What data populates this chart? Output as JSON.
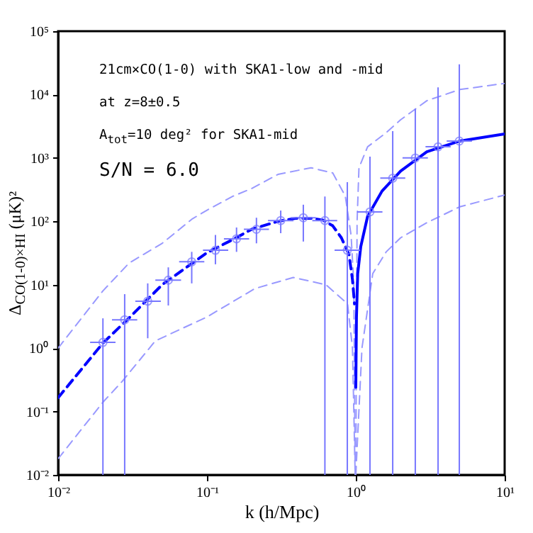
{
  "chart_data": {
    "type": "line",
    "xlabel": "k (h/Mpc)",
    "ylabel": "Δ$_{CO(1-0)×HI}$ (μK)²",
    "log": "xy",
    "xlim": [
      0.01,
      10
    ],
    "ylim": [
      0.01,
      100000
    ],
    "xticks": [
      {
        "value": 0.01,
        "label": "10⁻²"
      },
      {
        "value": 0.1,
        "label": "10⁻¹"
      },
      {
        "value": 1,
        "label": "10⁰"
      },
      {
        "value": 10,
        "label": "10¹"
      }
    ],
    "yticks": [
      {
        "value": 0.01,
        "label": "10⁻²"
      },
      {
        "value": 0.1,
        "label": "10⁻¹"
      },
      {
        "value": 1,
        "label": "10⁰"
      },
      {
        "value": 10,
        "label": "10¹"
      },
      {
        "value": 100,
        "label": "10²"
      },
      {
        "value": 1000,
        "label": "10³"
      },
      {
        "value": 10000,
        "label": "10⁴"
      },
      {
        "value": 100000,
        "label": "10⁵"
      }
    ],
    "annotations": [
      "21cm×CO(1-0) with SKA1-low and -mid",
      "at z=8±0.5",
      "A$_{tot}$=10 deg² for SKA1-mid",
      "S/N = 6.0"
    ],
    "series": [
      {
        "line_style": "dashed",
        "color": "#9999ff",
        "x": [
          0.01,
          0.02,
          0.03,
          0.05,
          0.08,
          0.1,
          0.15,
          0.2,
          0.3,
          0.5,
          0.7,
          0.85,
          0.93,
          0.97,
          0.99
        ],
        "values": [
          1.0,
          8,
          22,
          45,
          110,
          150,
          250,
          330,
          550,
          700,
          580,
          250,
          60,
          10,
          0.01
        ]
      },
      {
        "line_style": "dashed",
        "color": "#9999ff",
        "x": [
          1.0,
          1.02,
          1.05,
          1.2,
          1.6,
          2,
          3,
          5,
          10
        ],
        "values": [
          0.01,
          100,
          700,
          1500,
          2500,
          4000,
          8000,
          12000,
          15000
        ]
      },
      {
        "line_style": "dashed",
        "color": "#9999ff",
        "x": [
          0.01,
          0.02,
          0.027,
          0.045,
          0.1,
          0.21,
          0.38,
          0.63,
          0.88,
          0.95,
          0.99
        ],
        "values": [
          0.018,
          0.14,
          0.3,
          1.3,
          3.1,
          8.7,
          13,
          10,
          5,
          1,
          0.01
        ]
      },
      {
        "line_style": "dashed",
        "color": "#9999ff",
        "x": [
          1.0,
          1.1,
          1.3,
          1.6,
          2,
          3,
          5,
          10
        ],
        "values": [
          0.01,
          1,
          15,
          33,
          55,
          95,
          170,
          260
        ]
      },
      {
        "line_style": "dashed",
        "color": "#0000ff",
        "x": [
          0.01,
          0.02,
          0.03,
          0.05,
          0.08,
          0.1,
          0.15,
          0.2,
          0.3,
          0.4,
          0.5,
          0.6,
          0.7,
          0.8,
          0.9,
          0.95,
          0.98
        ],
        "values": [
          0.165,
          1.2,
          3,
          10,
          22,
          32,
          52,
          75,
          100,
          112,
          112,
          105,
          85,
          55,
          30,
          12,
          5
        ]
      },
      {
        "line_style": "solid",
        "color": "#0000ff",
        "x": [
          1.0,
          1.01,
          1.03,
          1.08,
          1.2,
          1.5,
          2,
          3,
          5,
          10
        ],
        "values": [
          0.24,
          3,
          15,
          40,
          120,
          300,
          620,
          1250,
          1850,
          2400
        ]
      },
      {
        "type": "scatter",
        "marker": "circle",
        "color": "#7777ff",
        "x": [
          0.02,
          0.028,
          0.04,
          0.055,
          0.079,
          0.114,
          0.158,
          0.215,
          0.313,
          0.444,
          0.62,
          0.877,
          1.245,
          1.77,
          2.51,
          3.57,
          4.96
        ],
        "values": [
          1.23,
          2.8,
          5.5,
          11.8,
          23,
          35,
          53,
          75,
          103,
          114,
          103,
          35,
          141,
          480,
          1000,
          1500,
          1850
        ],
        "errors": [
          [
            0.01,
            2.95
          ],
          [
            0.01,
            7.1
          ],
          [
            1.43,
            10.5
          ],
          [
            4.7,
            18.8
          ],
          [
            10.5,
            33
          ],
          [
            21,
            61
          ],
          [
            33,
            80
          ],
          [
            45,
            114
          ],
          [
            65,
            148
          ],
          [
            48,
            183
          ],
          [
            0.01,
            247
          ],
          [
            0.01,
            414
          ],
          [
            0.01,
            1050
          ],
          [
            0.01,
            2650
          ],
          [
            0.01,
            6000
          ],
          [
            0.01,
            13000
          ],
          [
            0.01,
            30000
          ]
        ],
        "xerrors": [
          [
            0.0164,
            0.0243
          ],
          [
            0.023,
            0.034
          ],
          [
            0.033,
            0.049
          ],
          [
            0.045,
            0.067
          ],
          [
            0.065,
            0.096
          ],
          [
            0.094,
            0.139
          ],
          [
            0.13,
            0.192
          ],
          [
            0.177,
            0.261
          ],
          [
            0.257,
            0.381
          ],
          [
            0.365,
            0.54
          ],
          [
            0.51,
            0.75
          ],
          [
            0.72,
            1.07
          ],
          [
            1.02,
            1.51
          ],
          [
            1.46,
            2.15
          ],
          [
            2.06,
            3.05
          ],
          [
            2.94,
            4.34
          ],
          [
            4.08,
            6.03
          ]
        ]
      }
    ]
  }
}
